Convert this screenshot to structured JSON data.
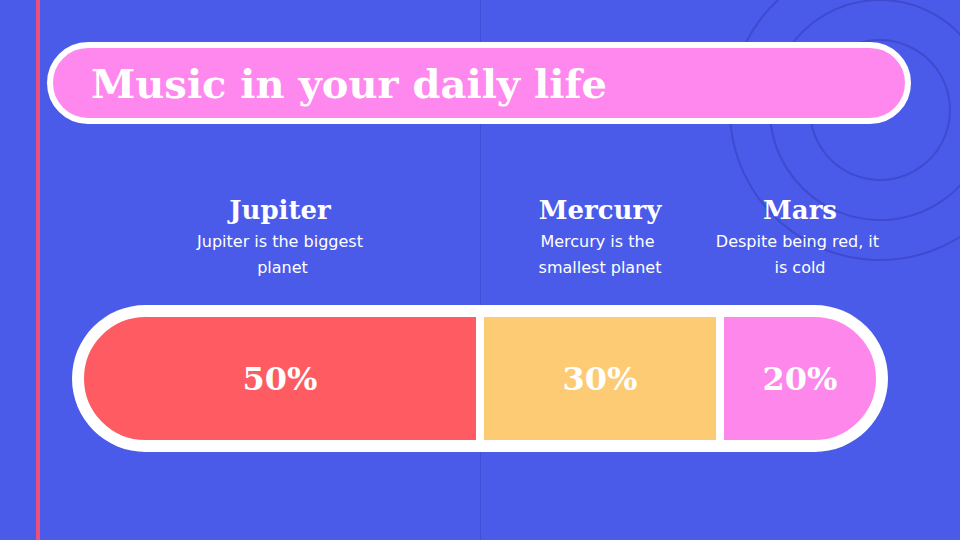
{
  "chart_data": {
    "type": "bar",
    "title": "Music in your daily life",
    "orientation": "horizontal",
    "stacked": true,
    "data_labels": true,
    "tick_labels": false,
    "grid": false,
    "categories": [
      null
    ],
    "xlim": [
      0,
      100
    ],
    "series": [
      {
        "name": "Jupiter",
        "description": "Jupiter is the biggest planet",
        "color": "#fe5c62",
        "values": [
          50
        ],
        "value_labels": [
          "50%"
        ]
      },
      {
        "name": "Mercury",
        "description": "Mercury is the smallest planet",
        "color": "#fdcb74",
        "values": [
          30
        ],
        "value_labels": [
          "30%"
        ]
      },
      {
        "name": "Mars",
        "description": "Despite being red, it is cold",
        "color": "#fe87ec",
        "values": [
          20
        ],
        "value_labels": [
          "20%"
        ]
      }
    ]
  }
}
